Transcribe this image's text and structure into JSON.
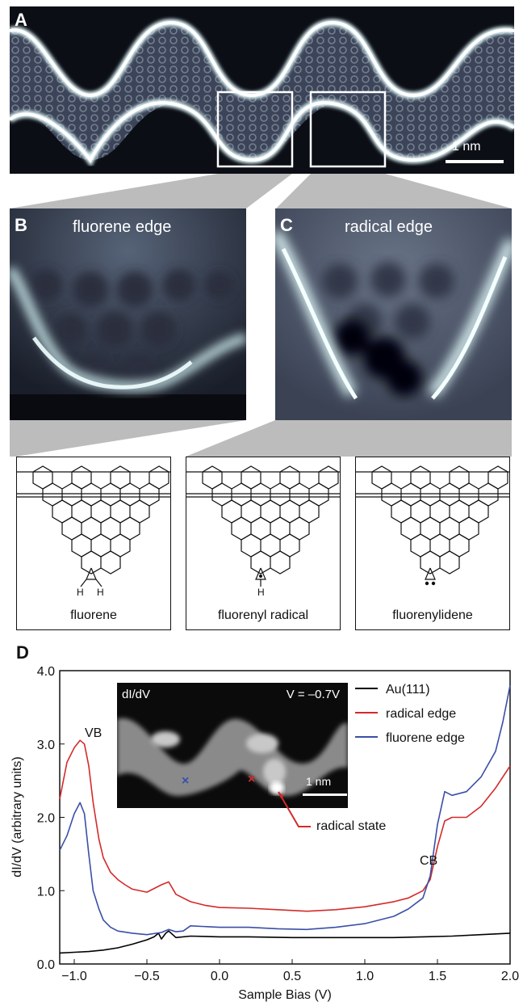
{
  "panels": {
    "A": {
      "letter": "A",
      "scale_bar": "1 nm"
    },
    "B": {
      "letter": "B",
      "title": "fluorene edge"
    },
    "C": {
      "letter": "C",
      "title": "radical edge"
    },
    "D": {
      "letter": "D"
    }
  },
  "structures": [
    {
      "caption": "fluorene",
      "bottom_group": "CH2",
      "h_labels": [
        "H",
        "H"
      ]
    },
    {
      "caption": "fluorenyl radical",
      "bottom_group": "CH radical",
      "h_labels": [
        "H"
      ]
    },
    {
      "caption": "fluorenylidene",
      "bottom_group": "carbene",
      "h_labels": []
    }
  ],
  "inset": {
    "label_prefix": "dI/dV",
    "bias_label": "V = –0.7V",
    "scale_bar": "1 nm",
    "annotation": "radical state"
  },
  "colors": {
    "au": "#000000",
    "radical": "#d42a2a",
    "fluorene": "#3a4fa8"
  },
  "chart_data": {
    "type": "line",
    "xlabel": "Sample Bias (V)",
    "ylabel": "dI/dV (arbitrary units)",
    "xlim": [
      -1.1,
      2.0
    ],
    "ylim": [
      0.0,
      4.0
    ],
    "xticks": [
      "-1.0",
      "-0.5",
      "0.0",
      "0.5",
      "1.0",
      "1.5",
      "2.0"
    ],
    "yticks": [
      "0.0",
      "1.0",
      "2.0",
      "3.0",
      "4.0"
    ],
    "annotations": [
      "VB",
      "CB"
    ],
    "legend_position": "top-right",
    "series": [
      {
        "name": "Au(111)",
        "x": [
          -1.1,
          -1.0,
          -0.9,
          -0.8,
          -0.7,
          -0.6,
          -0.5,
          -0.45,
          -0.42,
          -0.4,
          -0.37,
          -0.35,
          -0.3,
          -0.2,
          0.0,
          0.2,
          0.5,
          0.8,
          1.0,
          1.2,
          1.4,
          1.6,
          1.8,
          2.0
        ],
        "y": [
          0.15,
          0.16,
          0.17,
          0.19,
          0.22,
          0.27,
          0.33,
          0.37,
          0.42,
          0.34,
          0.42,
          0.45,
          0.36,
          0.38,
          0.37,
          0.37,
          0.36,
          0.36,
          0.36,
          0.36,
          0.37,
          0.38,
          0.4,
          0.42
        ]
      },
      {
        "name": "radical edge",
        "x": [
          -1.1,
          -1.05,
          -1.0,
          -0.96,
          -0.93,
          -0.9,
          -0.87,
          -0.83,
          -0.8,
          -0.75,
          -0.7,
          -0.65,
          -0.6,
          -0.5,
          -0.4,
          -0.35,
          -0.3,
          -0.2,
          -0.1,
          0.0,
          0.2,
          0.4,
          0.6,
          0.8,
          1.0,
          1.2,
          1.3,
          1.4,
          1.45,
          1.5,
          1.55,
          1.6,
          1.7,
          1.8,
          1.9,
          2.0
        ],
        "y": [
          2.25,
          2.75,
          2.95,
          3.05,
          3.0,
          2.7,
          2.2,
          1.7,
          1.45,
          1.25,
          1.15,
          1.08,
          1.02,
          0.98,
          1.08,
          1.12,
          0.95,
          0.85,
          0.8,
          0.77,
          0.76,
          0.74,
          0.72,
          0.74,
          0.78,
          0.85,
          0.9,
          1.0,
          1.15,
          1.6,
          1.95,
          2.0,
          2.0,
          2.15,
          2.4,
          2.7
        ]
      },
      {
        "name": "fluorene edge",
        "x": [
          -1.1,
          -1.05,
          -1.0,
          -0.96,
          -0.93,
          -0.9,
          -0.87,
          -0.83,
          -0.8,
          -0.75,
          -0.7,
          -0.6,
          -0.5,
          -0.4,
          -0.35,
          -0.3,
          -0.25,
          -0.2,
          0.0,
          0.2,
          0.4,
          0.6,
          0.8,
          1.0,
          1.2,
          1.3,
          1.4,
          1.45,
          1.5,
          1.55,
          1.6,
          1.7,
          1.8,
          1.9,
          1.95,
          2.0
        ],
        "y": [
          1.55,
          1.75,
          2.05,
          2.2,
          2.05,
          1.5,
          1.0,
          0.75,
          0.6,
          0.5,
          0.45,
          0.42,
          0.4,
          0.43,
          0.47,
          0.44,
          0.45,
          0.52,
          0.5,
          0.5,
          0.48,
          0.47,
          0.5,
          0.55,
          0.65,
          0.75,
          0.9,
          1.2,
          1.9,
          2.35,
          2.3,
          2.35,
          2.55,
          2.9,
          3.3,
          3.8
        ]
      }
    ]
  }
}
